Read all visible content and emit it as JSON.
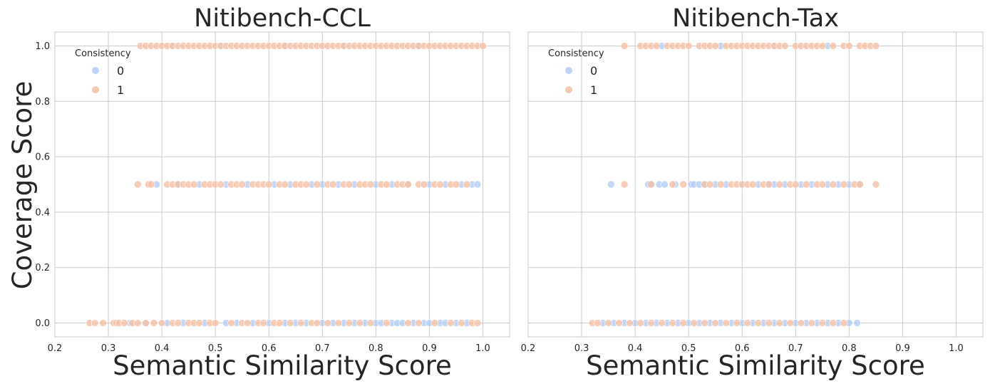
{
  "chart_data": [
    {
      "type": "scatter",
      "title": "Nitibench-CCL",
      "xlabel": "Semantic Similarity Score",
      "ylabel": "Coverage Score",
      "xlim": [
        0.2,
        1.05
      ],
      "ylim": [
        -0.05,
        1.05
      ],
      "xticks": [
        "0.2",
        "0.3",
        "0.4",
        "0.5",
        "0.6",
        "0.7",
        "0.8",
        "0.9",
        "1.0"
      ],
      "yticks": [
        "0.0",
        "0.2",
        "0.4",
        "0.6",
        "0.8",
        "1.0"
      ],
      "grid": true,
      "legend": {
        "title": "Consistency",
        "placement": "top-left",
        "entries": [
          "0",
          "1"
        ]
      },
      "series": [
        {
          "name": "0",
          "color": "#b4cdf7",
          "points": [
            {
              "y": 1.0,
              "x": [
                0.42,
                0.51,
                0.63,
                0.74,
                0.88
              ]
            },
            {
              "y": 0.5,
              "x": [
                0.39,
                0.43,
                0.47,
                0.52,
                0.56,
                0.61,
                0.64,
                0.68,
                0.7,
                0.73,
                0.76,
                0.8,
                0.83,
                0.86,
                0.9,
                0.93,
                0.96,
                0.98,
                0.99
              ]
            },
            {
              "y": 0.0,
              "x": [
                0.34,
                0.37,
                0.41,
                0.44,
                0.48,
                0.52,
                0.54,
                0.57,
                0.6,
                0.63,
                0.65,
                0.67,
                0.7,
                0.72,
                0.74,
                0.76,
                0.78,
                0.8,
                0.81,
                0.83,
                0.84,
                0.85,
                0.87,
                0.89,
                0.9,
                0.92,
                0.93,
                0.95,
                0.97
              ]
            }
          ]
        },
        {
          "name": "1",
          "color": "#f5c1a5",
          "points": [
            {
              "y": 1.0,
              "x": [
                0.36,
                0.37,
                0.38,
                0.39,
                0.4,
                0.41,
                0.42,
                0.43,
                0.44,
                0.45,
                0.46,
                0.47,
                0.48,
                0.49,
                0.5,
                0.51,
                0.52,
                0.53,
                0.54,
                0.55,
                0.56,
                0.57,
                0.58,
                0.59,
                0.6,
                0.61,
                0.62,
                0.63,
                0.64,
                0.65,
                0.66,
                0.67,
                0.68,
                0.69,
                0.7,
                0.71,
                0.72,
                0.73,
                0.74,
                0.75,
                0.76,
                0.77,
                0.78,
                0.79,
                0.8,
                0.81,
                0.82,
                0.83,
                0.84,
                0.85,
                0.86,
                0.87,
                0.88,
                0.89,
                0.9,
                0.91,
                0.92,
                0.93,
                0.94,
                0.95,
                0.96,
                0.97,
                0.98,
                0.99,
                1.0
              ]
            },
            {
              "y": 0.5,
              "x": [
                0.355,
                0.375,
                0.38,
                0.41,
                0.42,
                0.43,
                0.44,
                0.45,
                0.46,
                0.48,
                0.49,
                0.5,
                0.51,
                0.53,
                0.54,
                0.55,
                0.57,
                0.58,
                0.59,
                0.6,
                0.62,
                0.63,
                0.65,
                0.66,
                0.67,
                0.69,
                0.71,
                0.72,
                0.74,
                0.75,
                0.77,
                0.78,
                0.79,
                0.81,
                0.82,
                0.84,
                0.85,
                0.86,
                0.88,
                0.89,
                0.91,
                0.92,
                0.94,
                0.95,
                0.97
              ]
            },
            {
              "y": 0.0,
              "x": [
                0.265,
                0.275,
                0.29,
                0.31,
                0.315,
                0.32,
                0.33,
                0.345,
                0.355,
                0.37,
                0.385,
                0.4,
                0.42,
                0.43,
                0.45,
                0.46,
                0.47,
                0.49,
                0.5,
                0.53,
                0.55,
                0.56,
                0.58,
                0.59,
                0.61,
                0.62,
                0.64,
                0.66,
                0.68,
                0.69,
                0.71,
                0.73,
                0.75,
                0.77,
                0.79,
                0.82,
                0.86,
                0.88,
                0.91,
                0.94,
                0.96,
                0.98,
                0.99
              ]
            }
          ]
        }
      ]
    },
    {
      "type": "scatter",
      "title": "Nitibench-Tax",
      "xlabel": "Semantic Similarity Score",
      "ylabel": "",
      "xlim": [
        0.2,
        1.05
      ],
      "ylim": [
        -0.05,
        1.05
      ],
      "xticks": [
        "0.2",
        "0.3",
        "0.4",
        "0.5",
        "0.6",
        "0.7",
        "0.8",
        "0.9",
        "1.0"
      ],
      "yticks": [],
      "grid": true,
      "legend": {
        "title": "Consistency",
        "placement": "top-left",
        "entries": [
          "0",
          "1"
        ]
      },
      "series": [
        {
          "name": "0",
          "color": "#b4cdf7",
          "points": [
            {
              "y": 1.0,
              "x": [
                0.45,
                0.56,
                0.66,
                0.76
              ]
            },
            {
              "y": 0.5,
              "x": [
                0.355,
                0.425,
                0.43,
                0.445,
                0.455,
                0.475,
                0.505,
                0.51,
                0.52,
                0.53,
                0.55,
                0.57,
                0.6,
                0.63,
                0.65,
                0.66,
                0.68,
                0.71,
                0.73,
                0.76,
                0.78,
                0.8,
                0.82
              ]
            },
            {
              "y": 0.0,
              "x": [
                0.34,
                0.36,
                0.38,
                0.4,
                0.42,
                0.44,
                0.46,
                0.48,
                0.5,
                0.52,
                0.54,
                0.56,
                0.58,
                0.6,
                0.62,
                0.64,
                0.66,
                0.68,
                0.7,
                0.72,
                0.74,
                0.76,
                0.78,
                0.8,
                0.815
              ]
            }
          ]
        },
        {
          "name": "1",
          "color": "#f5c1a5",
          "points": [
            {
              "y": 1.0,
              "x": [
                0.38,
                0.41,
                0.42,
                0.43,
                0.44,
                0.46,
                0.47,
                0.48,
                0.49,
                0.5,
                0.52,
                0.53,
                0.54,
                0.55,
                0.57,
                0.58,
                0.59,
                0.6,
                0.61,
                0.62,
                0.63,
                0.64,
                0.65,
                0.66,
                0.67,
                0.68,
                0.7,
                0.71,
                0.72,
                0.73,
                0.74,
                0.75,
                0.77,
                0.79,
                0.8,
                0.82,
                0.83,
                0.84,
                0.85
              ]
            },
            {
              "y": 0.5,
              "x": [
                0.38,
                0.43,
                0.47,
                0.49,
                0.53,
                0.54,
                0.56,
                0.58,
                0.59,
                0.6,
                0.61,
                0.62,
                0.64,
                0.65,
                0.67,
                0.69,
                0.7,
                0.72,
                0.74,
                0.75,
                0.77,
                0.79,
                0.81,
                0.82,
                0.85
              ]
            },
            {
              "y": 0.0,
              "x": [
                0.32,
                0.33,
                0.35,
                0.37,
                0.39,
                0.41,
                0.43,
                0.45,
                0.47,
                0.49,
                0.51,
                0.53,
                0.55,
                0.57,
                0.59,
                0.61,
                0.63,
                0.65,
                0.67,
                0.69,
                0.71,
                0.73,
                0.75,
                0.77,
                0.79
              ]
            }
          ]
        }
      ]
    }
  ]
}
